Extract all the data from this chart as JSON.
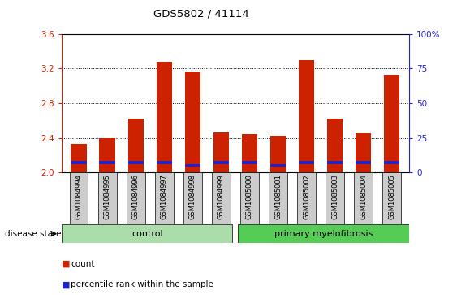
{
  "title": "GDS5802 / 41114",
  "samples": [
    "GSM1084994",
    "GSM1084995",
    "GSM1084996",
    "GSM1084997",
    "GSM1084998",
    "GSM1084999",
    "GSM1085000",
    "GSM1085001",
    "GSM1085002",
    "GSM1085003",
    "GSM1085004",
    "GSM1085005"
  ],
  "red_heights": [
    2.33,
    2.4,
    2.62,
    3.28,
    3.17,
    2.46,
    2.44,
    2.43,
    3.3,
    2.62,
    2.45,
    3.13
  ],
  "blue_heights": [
    0.03,
    0.03,
    0.03,
    0.03,
    0.03,
    0.03,
    0.03,
    0.03,
    0.03,
    0.03,
    0.03,
    0.03
  ],
  "blue_bottoms": [
    2.1,
    2.1,
    2.1,
    2.1,
    2.07,
    2.1,
    2.1,
    2.07,
    2.1,
    2.1,
    2.1,
    2.1
  ],
  "bar_width": 0.55,
  "ylim": [
    2.0,
    3.6
  ],
  "yticks_left": [
    2.0,
    2.4,
    2.8,
    3.2,
    3.6
  ],
  "yticks_right": [
    0,
    25,
    50,
    75,
    100
  ],
  "right_ylim_labels": [
    "0",
    "25",
    "50",
    "75",
    "100%"
  ],
  "control_label": "control",
  "myelofibrosis_label": "primary myelofibrosis",
  "disease_state_label": "disease state",
  "legend_count": "count",
  "legend_percentile": "percentile rank within the sample",
  "red_color": "#CC2200",
  "blue_color": "#2222CC",
  "control_bg": "#AADDAA",
  "myelofibrosis_bg": "#55CC55",
  "tick_bg": "#CCCCCC",
  "left_axis_color": "#CC2200",
  "right_axis_color": "#2222CC"
}
